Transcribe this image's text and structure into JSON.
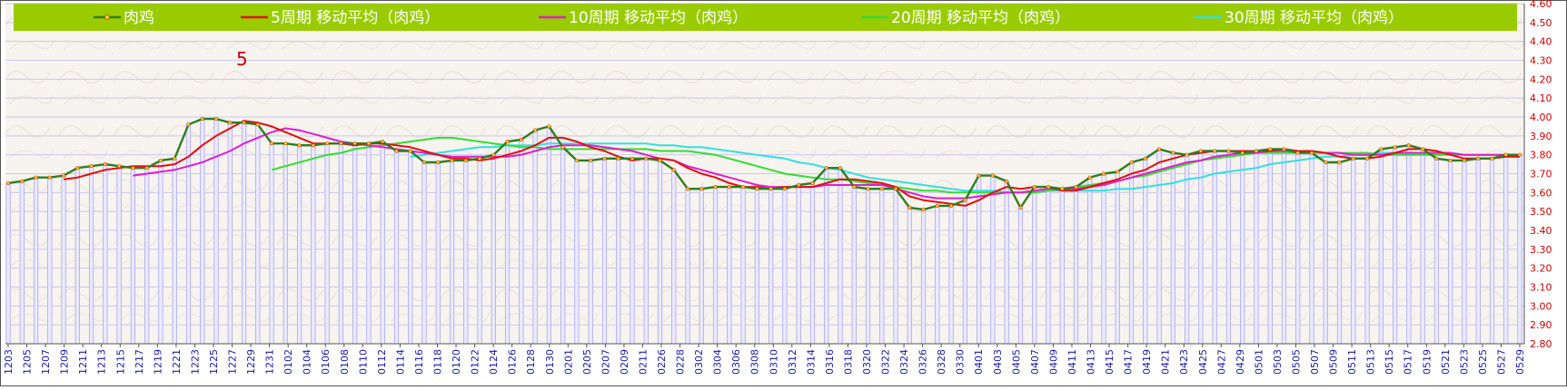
{
  "chart_data": {
    "type": "line",
    "legend_position": "top",
    "marker_label": "5",
    "y_ticks": [
      "2.80",
      "2.90",
      "3.00",
      "3.10",
      "3.20",
      "3.30",
      "3.40",
      "3.50",
      "3.60",
      "3.70",
      "3.80",
      "3.90",
      "4.00",
      "4.10",
      "4.20",
      "4.30",
      "4.40",
      "4.50",
      "4.60"
    ],
    "ylim": [
      2.8,
      4.6
    ],
    "x_tick_labels": [
      "1203",
      "1205",
      "1207",
      "1209",
      "1211",
      "1213",
      "1215",
      "1217",
      "1219",
      "1221",
      "1223",
      "1225",
      "1227",
      "1229",
      "1231",
      "0102",
      "0104",
      "0106",
      "0108",
      "0110",
      "0112",
      "0114",
      "0116",
      "0118",
      "0120",
      "0122",
      "0124",
      "0126",
      "0128",
      "0130",
      "0201",
      "0205",
      "0207",
      "0209",
      "0211",
      "0226",
      "0228",
      "0302",
      "0304",
      "0306",
      "0308",
      "0310",
      "0312",
      "0314",
      "0316",
      "0318",
      "0320",
      "0322",
      "0324",
      "0326",
      "0328",
      "0330",
      "0401",
      "0403",
      "0405",
      "0407",
      "0409",
      "0411",
      "0413",
      "0415",
      "0417",
      "0419",
      "0421",
      "0423",
      "0425",
      "0427",
      "0429",
      "0501",
      "0503",
      "0505",
      "0507",
      "0509",
      "0511",
      "0513",
      "0515",
      "0517",
      "0519",
      "0521",
      "0523",
      "0525",
      "0527",
      "0529"
    ],
    "series": [
      {
        "name": "肉鸡",
        "color": "#2e7d1f",
        "values": [
          3.65,
          3.66,
          3.68,
          3.68,
          3.69,
          3.73,
          3.74,
          3.75,
          3.74,
          3.73,
          3.73,
          3.77,
          3.78,
          3.96,
          3.99,
          3.99,
          3.97,
          3.97,
          3.96,
          3.86,
          3.86,
          3.85,
          3.85,
          3.86,
          3.86,
          3.86,
          3.86,
          3.87,
          3.82,
          3.82,
          3.76,
          3.76,
          3.77,
          3.77,
          3.78,
          3.8,
          3.87,
          3.88,
          3.93,
          3.95,
          3.84,
          3.77,
          3.77,
          3.78,
          3.78,
          3.78,
          3.78,
          3.77,
          3.72,
          3.62,
          3.62,
          3.63,
          3.63,
          3.63,
          3.62,
          3.62,
          3.62,
          3.64,
          3.65,
          3.73,
          3.73,
          3.63,
          3.62,
          3.62,
          3.62,
          3.52,
          3.51,
          3.53,
          3.53,
          3.56,
          3.69,
          3.69,
          3.66,
          3.52,
          3.63,
          3.63,
          3.62,
          3.63,
          3.68,
          3.7,
          3.71,
          3.76,
          3.78,
          3.83,
          3.81,
          3.8,
          3.82,
          3.82,
          3.82,
          3.81,
          3.82,
          3.83,
          3.83,
          3.81,
          3.81,
          3.76,
          3.76,
          3.78,
          3.78,
          3.83,
          3.84,
          3.85,
          3.83,
          3.78,
          3.77,
          3.77,
          3.78,
          3.78,
          3.8,
          3.8
        ]
      },
      {
        "name": "5周期  移动平均（肉鸡）",
        "color": "#e01010",
        "values": [
          null,
          null,
          null,
          null,
          3.67,
          3.68,
          3.7,
          3.72,
          3.73,
          3.74,
          3.74,
          3.74,
          3.75,
          3.79,
          3.85,
          3.9,
          3.94,
          3.98,
          3.97,
          3.95,
          3.92,
          3.89,
          3.86,
          3.86,
          3.86,
          3.85,
          3.86,
          3.86,
          3.85,
          3.84,
          3.82,
          3.8,
          3.78,
          3.78,
          3.77,
          3.78,
          3.8,
          3.82,
          3.85,
          3.89,
          3.89,
          3.87,
          3.84,
          3.82,
          3.79,
          3.77,
          3.78,
          3.78,
          3.77,
          3.73,
          3.7,
          3.68,
          3.65,
          3.63,
          3.63,
          3.62,
          3.63,
          3.63,
          3.63,
          3.65,
          3.67,
          3.67,
          3.66,
          3.65,
          3.63,
          3.58,
          3.56,
          3.55,
          3.54,
          3.53,
          3.56,
          3.6,
          3.63,
          3.62,
          3.63,
          3.63,
          3.61,
          3.61,
          3.63,
          3.65,
          3.67,
          3.7,
          3.72,
          3.76,
          3.78,
          3.8,
          3.81,
          3.82,
          3.82,
          3.82,
          3.82,
          3.82,
          3.83,
          3.82,
          3.82,
          3.81,
          3.79,
          3.78,
          3.78,
          3.79,
          3.81,
          3.83,
          3.83,
          3.82,
          3.8,
          3.78,
          3.78,
          3.78,
          3.79,
          3.79
        ]
      },
      {
        "name": "10周期  移动平均（肉鸡）",
        "color": "#e01ed0",
        "values": [
          null,
          null,
          null,
          null,
          null,
          null,
          null,
          null,
          null,
          3.69,
          3.7,
          3.71,
          3.72,
          3.74,
          3.76,
          3.79,
          3.82,
          3.86,
          3.89,
          3.92,
          3.94,
          3.93,
          3.91,
          3.89,
          3.87,
          3.86,
          3.85,
          3.84,
          3.83,
          3.82,
          3.81,
          3.8,
          3.79,
          3.79,
          3.79,
          3.79,
          3.79,
          3.8,
          3.82,
          3.84,
          3.85,
          3.85,
          3.85,
          3.84,
          3.83,
          3.82,
          3.8,
          3.78,
          3.77,
          3.74,
          3.72,
          3.7,
          3.68,
          3.66,
          3.64,
          3.63,
          3.63,
          3.63,
          3.63,
          3.64,
          3.64,
          3.64,
          3.64,
          3.64,
          3.62,
          3.6,
          3.58,
          3.57,
          3.57,
          3.57,
          3.58,
          3.59,
          3.6,
          3.6,
          3.61,
          3.62,
          3.62,
          3.62,
          3.63,
          3.64,
          3.66,
          3.68,
          3.7,
          3.72,
          3.74,
          3.76,
          3.77,
          3.79,
          3.8,
          3.81,
          3.81,
          3.82,
          3.82,
          3.82,
          3.82,
          3.81,
          3.81,
          3.8,
          3.8,
          3.8,
          3.81,
          3.81,
          3.81,
          3.81,
          3.81,
          3.8,
          3.8,
          3.8,
          3.8,
          3.8
        ]
      },
      {
        "name": "20周期  移动平均（肉鸡）",
        "color": "#33dd33",
        "values": [
          null,
          null,
          null,
          null,
          null,
          null,
          null,
          null,
          null,
          null,
          null,
          null,
          null,
          null,
          null,
          null,
          null,
          null,
          null,
          3.72,
          3.74,
          3.76,
          3.78,
          3.8,
          3.81,
          3.83,
          3.84,
          3.85,
          3.86,
          3.87,
          3.88,
          3.89,
          3.89,
          3.88,
          3.87,
          3.86,
          3.85,
          3.84,
          3.84,
          3.83,
          3.83,
          3.83,
          3.83,
          3.83,
          3.83,
          3.83,
          3.83,
          3.82,
          3.82,
          3.82,
          3.81,
          3.8,
          3.78,
          3.76,
          3.74,
          3.72,
          3.7,
          3.69,
          3.68,
          3.67,
          3.67,
          3.66,
          3.65,
          3.64,
          3.63,
          3.62,
          3.61,
          3.61,
          3.6,
          3.6,
          3.6,
          3.6,
          3.6,
          3.6,
          3.6,
          3.61,
          3.62,
          3.63,
          3.64,
          3.65,
          3.66,
          3.68,
          3.69,
          3.71,
          3.73,
          3.75,
          3.77,
          3.78,
          3.79,
          3.8,
          3.81,
          3.81,
          3.81,
          3.81,
          3.81,
          3.81,
          3.81,
          3.81,
          3.81,
          3.8,
          3.8,
          3.8,
          3.8,
          3.8,
          3.8,
          3.8,
          3.8,
          3.8,
          3.8,
          3.8
        ]
      },
      {
        "name": "30周期  移动平均（肉鸡）",
        "color": "#33e0e0",
        "values": [
          null,
          null,
          null,
          null,
          null,
          null,
          null,
          null,
          null,
          null,
          null,
          null,
          null,
          null,
          null,
          null,
          null,
          null,
          null,
          null,
          null,
          null,
          null,
          null,
          null,
          null,
          null,
          null,
          null,
          3.79,
          3.8,
          3.81,
          3.82,
          3.83,
          3.84,
          3.84,
          3.85,
          3.85,
          3.85,
          3.86,
          3.86,
          3.86,
          3.86,
          3.86,
          3.86,
          3.86,
          3.86,
          3.85,
          3.85,
          3.84,
          3.84,
          3.83,
          3.82,
          3.81,
          3.8,
          3.79,
          3.78,
          3.76,
          3.75,
          3.73,
          3.72,
          3.7,
          3.68,
          3.67,
          3.66,
          3.65,
          3.64,
          3.63,
          3.62,
          3.61,
          3.61,
          3.61,
          3.6,
          3.6,
          3.6,
          3.61,
          3.61,
          3.61,
          3.61,
          3.61,
          3.62,
          3.62,
          3.63,
          3.64,
          3.65,
          3.67,
          3.68,
          3.7,
          3.71,
          3.72,
          3.73,
          3.75,
          3.76,
          3.77,
          3.78,
          3.79,
          3.79,
          3.8,
          3.8,
          3.81,
          3.81,
          3.81,
          3.81,
          3.81,
          3.81,
          3.8,
          3.8,
          3.8,
          3.8,
          3.8
        ]
      }
    ]
  }
}
